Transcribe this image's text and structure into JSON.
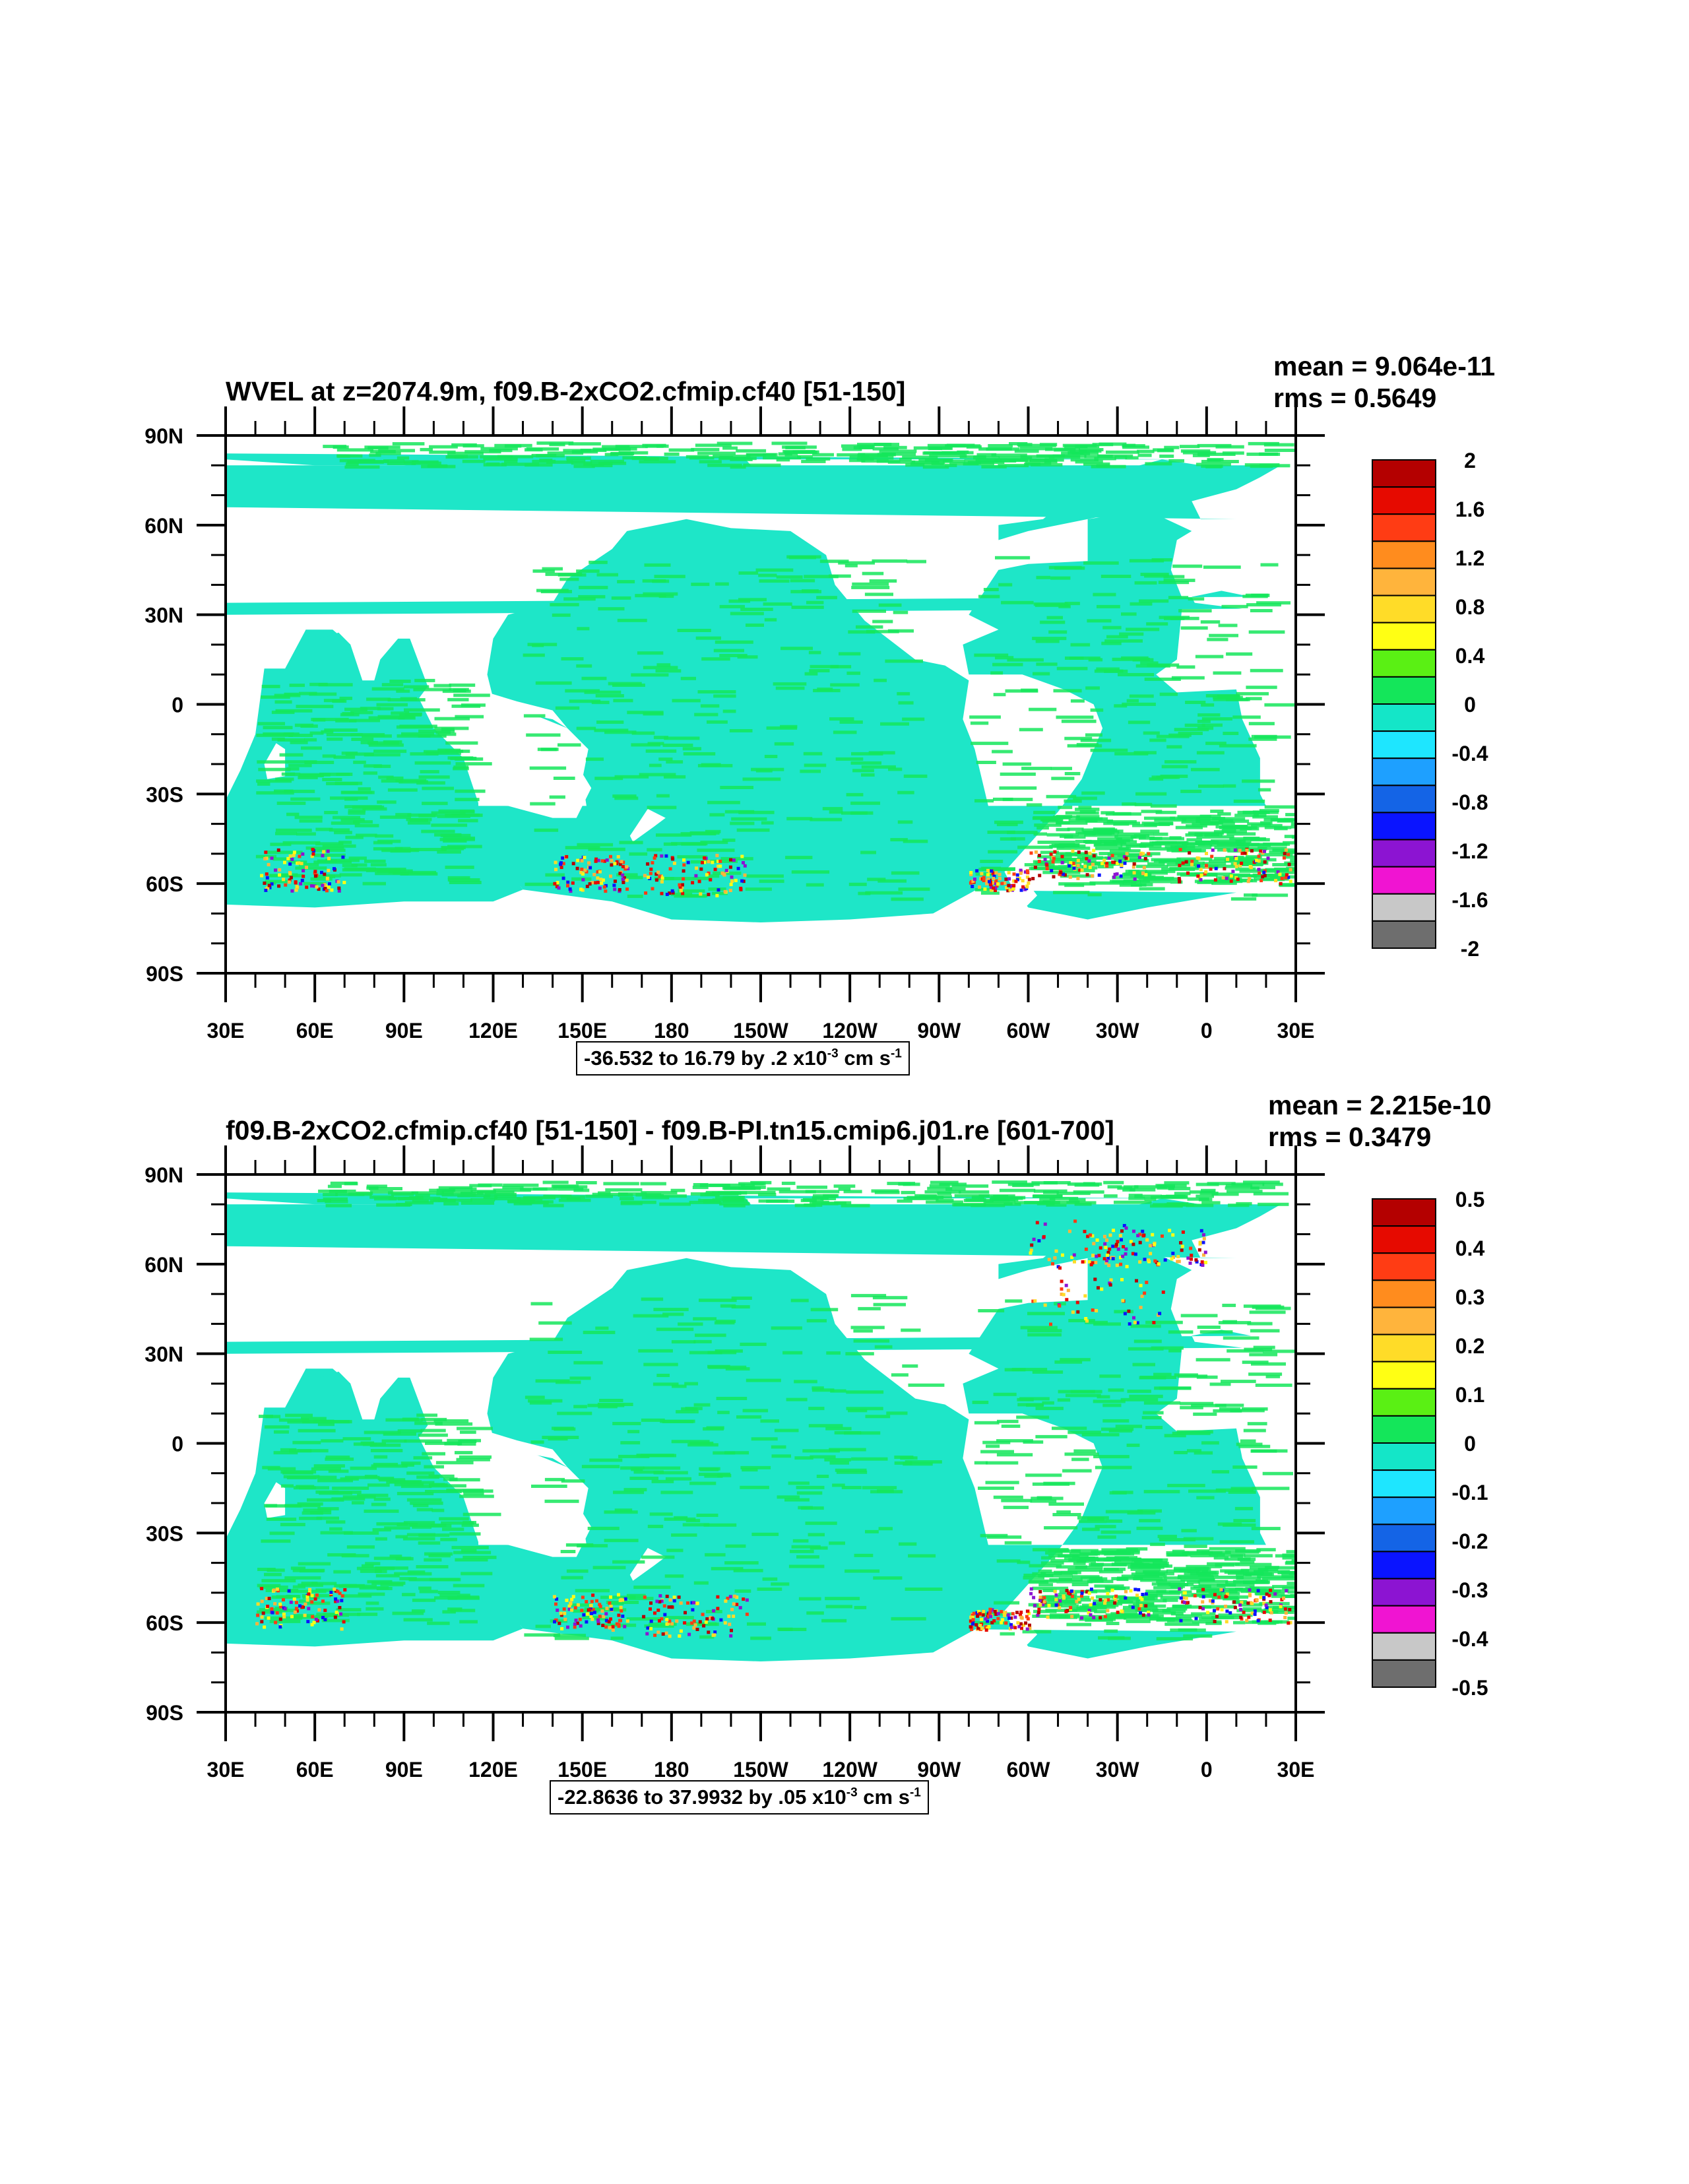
{
  "panels": [
    {
      "title": "WVEL at z=2074.9m, f09.B-2xCO2.cfmip.cf40 [51-150]",
      "mean": "mean = 9.064e-11",
      "rms": "rms = 0.5649",
      "range_main": "-36.532 to 16.79 by .2 x10",
      "range_exp": "-3",
      "range_unit": " cm s",
      "range_unit_exp": "-1",
      "colorbar_labels": [
        "2",
        "1.6",
        "1.2",
        "0.8",
        "0.4",
        "0",
        "-0.4",
        "-0.8",
        "-1.2",
        "-1.6",
        "-2"
      ]
    },
    {
      "title": "f09.B-2xCO2.cfmip.cf40 [51-150] - f09.B-PI.tn15.cmip6.j01.re [601-700]",
      "mean": "mean = 2.215e-10",
      "rms": "rms = 0.3479",
      "range_main": "-22.8636 to 37.9932 by .05 x10",
      "range_exp": "-3",
      "range_unit": " cm s",
      "range_unit_exp": "-1",
      "colorbar_labels": [
        "0.5",
        "0.4",
        "0.3",
        "0.2",
        "0.1",
        "0",
        "-0.1",
        "-0.2",
        "-0.3",
        "-0.4",
        "-0.5"
      ]
    }
  ],
  "lat_labels": [
    "90N",
    "60N",
    "30N",
    "0",
    "30S",
    "60S",
    "90S"
  ],
  "lon_labels": [
    "30E",
    "60E",
    "90E",
    "120E",
    "150E",
    "180",
    "150W",
    "120W",
    "90W",
    "60W",
    "30W",
    "0",
    "30E"
  ],
  "colorbar_colors": [
    "#b40000",
    "#e60a00",
    "#ff3c14",
    "#ff8c1e",
    "#ffb43c",
    "#ffdc28",
    "#ffff14",
    "#5af014",
    "#14e65a",
    "#14e6c8",
    "#1ee6ff",
    "#1ea0ff",
    "#1464e6",
    "#0a14ff",
    "#8c14d2",
    "#f014d2",
    "#c8c8c8",
    "#6e6e6e"
  ],
  "map_colors": {
    "ocean_base": "#1ee6c8",
    "ocean_green": "#14e65a",
    "land": "#ffffff"
  }
}
